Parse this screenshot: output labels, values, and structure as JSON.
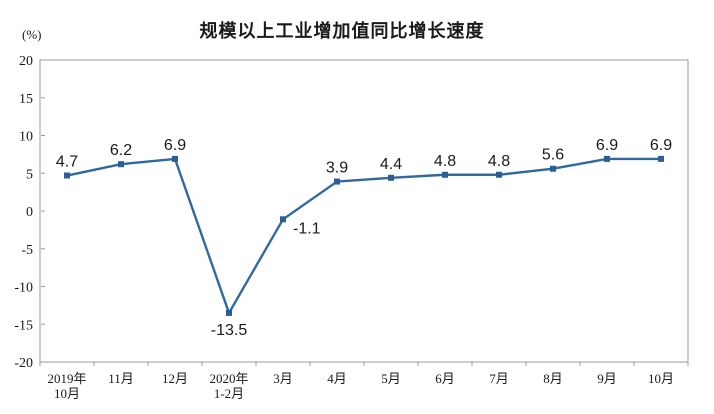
{
  "chart_data": {
    "type": "line",
    "title": "规模以上工业增加值同比增长速度",
    "unit_label": "(%)",
    "categories": [
      "2019年\n10月",
      "11月",
      "12月",
      "2020年\n1-2月",
      "3月",
      "4月",
      "5月",
      "6月",
      "7月",
      "8月",
      "9月",
      "10月"
    ],
    "values": [
      4.7,
      6.2,
      6.9,
      -13.5,
      -1.1,
      3.9,
      4.4,
      4.8,
      4.8,
      5.6,
      6.9,
      6.9
    ],
    "data_labels": [
      "4.7",
      "6.2",
      "6.9",
      "-13.5",
      "-1.1",
      "3.9",
      "4.4",
      "4.8",
      "4.8",
      "5.6",
      "6.9",
      "6.9"
    ],
    "ylim": [
      -20,
      20
    ],
    "yticks": [
      20,
      15,
      10,
      5,
      0,
      -5,
      -10,
      -15,
      -20
    ],
    "grid": false,
    "legend": "none",
    "colors": {
      "line": "#31699f",
      "marker": "#2b5e92",
      "axis": "#9b9b9b",
      "text": "#1a1a1a"
    }
  }
}
